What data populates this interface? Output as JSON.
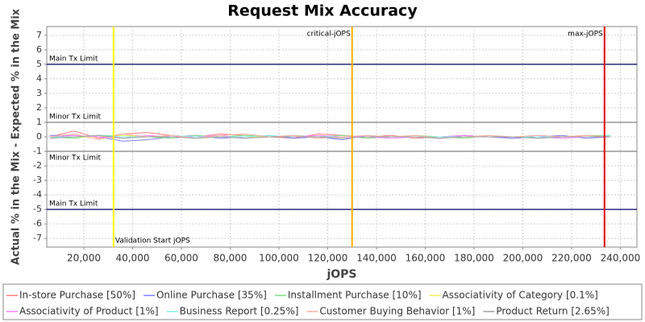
{
  "chart_data": {
    "type": "line",
    "title": "Request Mix Accuracy",
    "x_label": "jOPS",
    "y_label": "Actual % in the Mix - Expected % in the Mix",
    "x": [
      6000,
      16000,
      26000,
      36000,
      46000,
      56000,
      66000,
      76000,
      86000,
      96000,
      106000,
      116000,
      126000,
      136000,
      146000,
      156000,
      166000,
      176000,
      186000,
      196000,
      206000,
      216000,
      226000,
      236000
    ],
    "series": [
      {
        "name": "In-store Purchase [50%]",
        "color": "#ff8080",
        "values": [
          0,
          0.4,
          -0.1,
          0.2,
          0.3,
          0.1,
          0,
          0.2,
          0.1,
          0,
          -0.1,
          0.2,
          0.1,
          0,
          0.1,
          -0.1,
          0,
          0.1,
          0,
          -0.1,
          0.1,
          0,
          0.1,
          0
        ]
      },
      {
        "name": "Online Purchase [35%]",
        "color": "#8080ff",
        "values": [
          0.1,
          0.1,
          0,
          -0.3,
          -0.2,
          0,
          0.1,
          -0.1,
          0,
          0.1,
          -0.1,
          0,
          -0.2,
          0.1,
          0,
          0,
          -0.1,
          0.1,
          0,
          -0.1,
          0,
          0.1,
          -0.1,
          0
        ]
      },
      {
        "name": "Installment Purchase [10%]",
        "color": "#80e080",
        "values": [
          0,
          -0.1,
          0.1,
          0.1,
          0,
          -0.1,
          0.1,
          0,
          0.1,
          0,
          0.1,
          0,
          0.1,
          -0.1,
          0,
          0.1,
          0,
          -0.1,
          0.1,
          0,
          -0.1,
          0,
          0.1,
          0.1
        ]
      },
      {
        "name": "Associativity of Category [0.1%]",
        "color": "#f0f060",
        "values": [
          0,
          0,
          0,
          0.1,
          0,
          0,
          0,
          0,
          0,
          0,
          0,
          0,
          0,
          0,
          0,
          0,
          0,
          0,
          0,
          0,
          0,
          0,
          0,
          0
        ]
      },
      {
        "name": "Associativity of Product [1%]",
        "color": "#ff80ff",
        "values": [
          0,
          0.1,
          0,
          -0.1,
          0.1,
          0,
          0,
          0.1,
          -0.1,
          0,
          0,
          0.1,
          0,
          0,
          -0.1,
          0,
          0,
          0.1,
          0,
          0,
          0,
          -0.1,
          0,
          0
        ]
      },
      {
        "name": "Business Report [0.25%]",
        "color": "#80f0f0",
        "values": [
          0,
          0,
          0.1,
          0,
          0,
          0.1,
          0,
          0,
          0,
          0.1,
          0,
          0,
          0,
          0.1,
          0,
          0,
          0,
          0,
          0.1,
          0,
          0,
          0,
          0,
          0.1
        ]
      },
      {
        "name": "Customer Buying Behavior [1%]",
        "color": "#ffb0a0",
        "values": [
          0,
          0.2,
          -0.2,
          0.2,
          0,
          0.1,
          -0.1,
          0.1,
          0.2,
          0,
          0.1,
          -0.1,
          0,
          0.1,
          0,
          0.1,
          -0.1,
          0,
          0.1,
          0,
          0.1,
          0,
          0.1,
          0
        ]
      },
      {
        "name": "Product Return [2.65%]",
        "color": "#a0a0a0",
        "values": [
          -0.1,
          0,
          0.1,
          -0.1,
          0,
          0,
          -0.1,
          0,
          -0.1,
          0,
          0,
          0,
          -0.1,
          0,
          0,
          0,
          -0.1,
          0,
          0,
          0,
          -0.1,
          0,
          0,
          0
        ]
      }
    ],
    "xlim": [
      4800,
      246800
    ],
    "ylim": [
      -7.6,
      7.6
    ],
    "xticks": [
      {
        "value": 20000,
        "label": "20,000"
      },
      {
        "value": 40000,
        "label": "40,000"
      },
      {
        "value": 60000,
        "label": "60,000"
      },
      {
        "value": 80000,
        "label": "80,000"
      },
      {
        "value": 100000,
        "label": "100,000"
      },
      {
        "value": 120000,
        "label": "120,000"
      },
      {
        "value": 140000,
        "label": "140,000"
      },
      {
        "value": 160000,
        "label": "160,000"
      },
      {
        "value": 180000,
        "label": "180,000"
      },
      {
        "value": 200000,
        "label": "200,000"
      },
      {
        "value": 220000,
        "label": "220,000"
      },
      {
        "value": 240000,
        "label": "240,000"
      }
    ],
    "yticks": [
      -7,
      -6,
      -5,
      -4,
      -3,
      -2,
      -1,
      0,
      1,
      2,
      3,
      4,
      5,
      6,
      7
    ],
    "grid": true,
    "hlines": [
      {
        "label": "Main Tx Limit",
        "value": 5,
        "color": "#000060"
      },
      {
        "label": "Minor Tx Limit",
        "value": 1,
        "color": "#808080"
      },
      {
        "label": "Minor Tx Limit",
        "value": -1,
        "color": "#808080"
      },
      {
        "label": "Main Tx Limit",
        "value": -5,
        "color": "#000060"
      }
    ],
    "vlines": [
      {
        "label": "Validation Start jOPS",
        "value": 32200,
        "color": "#ffff00"
      },
      {
        "label": "critical-jOPS",
        "value": 130000,
        "color": "#ffb000"
      },
      {
        "label": "max-jOPS",
        "value": 233500,
        "color": "#e00000"
      }
    ],
    "legend": "bottom"
  }
}
